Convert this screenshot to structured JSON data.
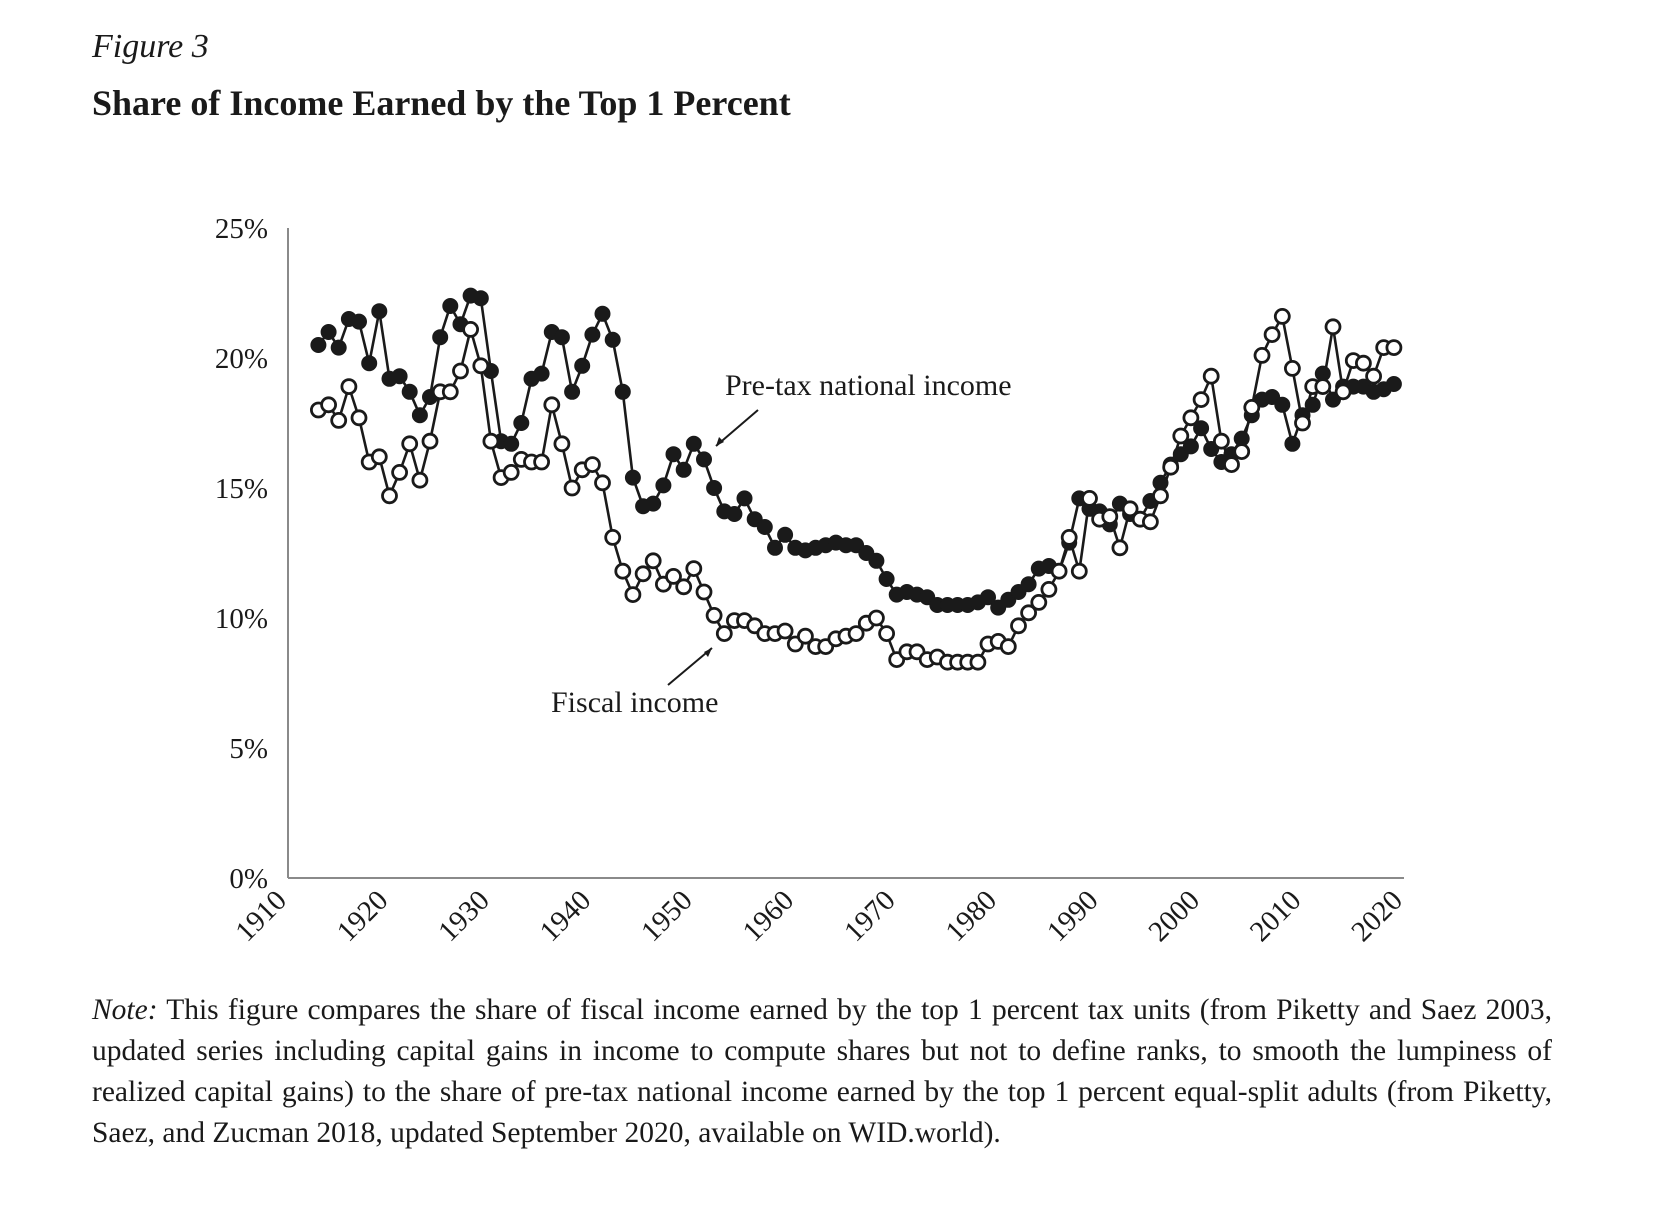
{
  "figure": {
    "label": "Figure 3",
    "title": "Share of Income Earned by the Top 1 Percent"
  },
  "note": {
    "label": "Note:",
    "text": " This figure compares the share of fiscal income earned by the top 1 percent tax units (from Piketty and Saez 2003, updated series including capital gains in income to compute shares but not to define ranks, to smooth the lumpiness of realized capital gains) to the share of pre-tax national income earned by the top 1 percent equal-split adults (from Piketty, Saez, and Zucman 2018, updated September 2020, available on WID.world)."
  },
  "chart_data": {
    "type": "line",
    "title": "",
    "xlabel": "",
    "ylabel": "",
    "xlim": [
      1910,
      2020
    ],
    "ylim": [
      0,
      25
    ],
    "x_ticks": [
      1910,
      1920,
      1930,
      1940,
      1950,
      1960,
      1970,
      1980,
      1990,
      2000,
      2010,
      2020
    ],
    "y_ticks": [
      0,
      5,
      10,
      15,
      20,
      25
    ],
    "y_tick_labels": [
      "0%",
      "5%",
      "10%",
      "15%",
      "20%",
      "25%"
    ],
    "grid": false,
    "legend": "none",
    "annotations": [
      {
        "text": "Pre-tax national income",
        "series": "Pre-tax national income"
      },
      {
        "text": "Fiscal income",
        "series": "Fiscal income"
      }
    ],
    "series": [
      {
        "name": "Pre-tax national income",
        "marker": "filled-circle",
        "color": "#1a1a1a",
        "x": [
          1913,
          1914,
          1915,
          1916,
          1917,
          1918,
          1919,
          1920,
          1921,
          1922,
          1923,
          1924,
          1925,
          1926,
          1927,
          1928,
          1929,
          1930,
          1931,
          1932,
          1933,
          1934,
          1935,
          1936,
          1937,
          1938,
          1939,
          1940,
          1941,
          1942,
          1943,
          1944,
          1945,
          1946,
          1947,
          1948,
          1949,
          1950,
          1951,
          1952,
          1953,
          1954,
          1955,
          1956,
          1957,
          1958,
          1959,
          1960,
          1961,
          1962,
          1963,
          1964,
          1965,
          1966,
          1967,
          1968,
          1969,
          1970,
          1971,
          1972,
          1973,
          1974,
          1975,
          1976,
          1977,
          1978,
          1979,
          1980,
          1981,
          1982,
          1983,
          1984,
          1985,
          1986,
          1987,
          1988,
          1989,
          1990,
          1991,
          1992,
          1993,
          1994,
          1995,
          1996,
          1997,
          1998,
          1999,
          2000,
          2001,
          2002,
          2003,
          2004,
          2005,
          2006,
          2007,
          2008,
          2009,
          2010,
          2011,
          2012,
          2013,
          2014,
          2015,
          2016,
          2017,
          2018,
          2019
        ],
        "values": [
          20.5,
          21.0,
          20.4,
          21.5,
          21.4,
          19.8,
          21.8,
          19.2,
          19.3,
          18.7,
          17.8,
          18.5,
          20.8,
          22.0,
          21.3,
          22.4,
          22.3,
          19.5,
          16.8,
          16.7,
          17.5,
          19.2,
          19.4,
          21.0,
          20.8,
          18.7,
          19.7,
          20.9,
          21.7,
          20.7,
          18.7,
          15.4,
          14.3,
          14.4,
          15.1,
          16.3,
          15.7,
          16.7,
          16.1,
          15.0,
          14.1,
          14.0,
          14.6,
          13.8,
          13.5,
          12.7,
          13.2,
          12.7,
          12.6,
          12.7,
          12.8,
          12.9,
          12.8,
          12.8,
          12.5,
          12.2,
          11.5,
          10.9,
          11.0,
          10.9,
          10.8,
          10.5,
          10.5,
          10.5,
          10.5,
          10.6,
          10.8,
          10.4,
          10.7,
          11.0,
          11.3,
          11.9,
          12.0,
          11.8,
          12.9,
          14.6,
          14.2,
          14.1,
          13.6,
          14.4,
          14.0,
          13.8,
          14.5,
          15.2,
          15.9,
          16.3,
          16.6,
          17.3,
          16.5,
          16.0,
          16.3,
          16.9,
          17.8,
          18.4,
          18.5,
          18.2,
          16.7,
          17.8,
          18.2,
          19.4,
          18.4,
          18.9,
          18.9,
          18.9,
          18.7,
          18.8,
          19.0
        ]
      },
      {
        "name": "Fiscal income",
        "marker": "open-circle",
        "color": "#1a1a1a",
        "x": [
          1913,
          1914,
          1915,
          1916,
          1917,
          1918,
          1919,
          1920,
          1921,
          1922,
          1923,
          1924,
          1925,
          1926,
          1927,
          1928,
          1929,
          1930,
          1931,
          1932,
          1933,
          1934,
          1935,
          1936,
          1937,
          1938,
          1939,
          1940,
          1941,
          1942,
          1943,
          1944,
          1945,
          1946,
          1947,
          1948,
          1949,
          1950,
          1951,
          1952,
          1953,
          1954,
          1955,
          1956,
          1957,
          1958,
          1959,
          1960,
          1961,
          1962,
          1963,
          1964,
          1965,
          1966,
          1967,
          1968,
          1969,
          1970,
          1971,
          1972,
          1973,
          1974,
          1975,
          1976,
          1977,
          1978,
          1979,
          1980,
          1981,
          1982,
          1983,
          1984,
          1985,
          1986,
          1987,
          1988,
          1989,
          1990,
          1991,
          1992,
          1993,
          1994,
          1995,
          1996,
          1997,
          1998,
          1999,
          2000,
          2001,
          2002,
          2003,
          2004,
          2005,
          2006,
          2007,
          2008,
          2009,
          2010,
          2011,
          2012,
          2013,
          2014,
          2015,
          2016,
          2017,
          2018,
          2019
        ],
        "values": [
          18.0,
          18.2,
          17.6,
          18.9,
          17.7,
          16.0,
          16.2,
          14.7,
          15.6,
          16.7,
          15.3,
          16.8,
          18.7,
          18.7,
          19.5,
          21.1,
          19.7,
          16.8,
          15.4,
          15.6,
          16.1,
          16.0,
          16.0,
          18.2,
          16.7,
          15.0,
          15.7,
          15.9,
          15.2,
          13.1,
          11.8,
          10.9,
          11.7,
          12.2,
          11.3,
          11.6,
          11.2,
          11.9,
          11.0,
          10.1,
          9.4,
          9.9,
          9.9,
          9.7,
          9.4,
          9.4,
          9.5,
          9.0,
          9.3,
          8.9,
          8.9,
          9.2,
          9.3,
          9.4,
          9.8,
          10.0,
          9.4,
          8.4,
          8.7,
          8.7,
          8.4,
          8.5,
          8.3,
          8.3,
          8.3,
          8.3,
          9.0,
          9.1,
          8.9,
          9.7,
          10.2,
          10.6,
          11.1,
          11.8,
          13.1,
          11.8,
          14.6,
          13.8,
          13.9,
          12.7,
          14.2,
          13.8,
          13.7,
          14.7,
          15.8,
          17.0,
          17.7,
          18.4,
          19.3,
          16.8,
          15.9,
          16.4,
          18.1,
          20.1,
          20.9,
          21.6,
          19.6,
          17.5,
          18.9,
          18.9,
          21.2,
          18.7,
          19.9,
          19.8,
          19.3,
          20.4,
          20.4
        ]
      }
    ]
  }
}
